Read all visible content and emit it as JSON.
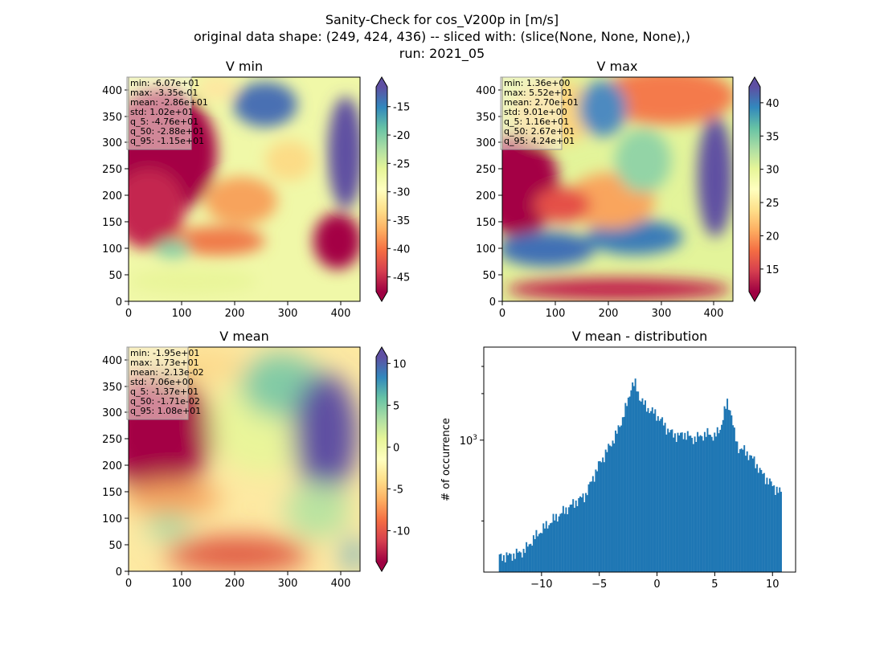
{
  "figure": {
    "title_lines": [
      "Sanity-Check for cos_V200p in [m/s]",
      "original data shape: (249, 424, 436) -- sliced with: (slice(None, None, None),)",
      "run: 2021_05"
    ]
  },
  "colormap": {
    "name": "Spectral",
    "stops": [
      "#9e0142",
      "#d53e4f",
      "#f46d43",
      "#fdae61",
      "#fee08b",
      "#ffffbf",
      "#e6f598",
      "#abdda4",
      "#66c2a5",
      "#3288bd",
      "#5e4fa2"
    ]
  },
  "panels": [
    {
      "id": "vmin",
      "title": "V min",
      "stats": [
        "min: -6.07e+01",
        "max: -3.35e-01",
        "mean: -2.86e+01",
        "std: 1.02e+01",
        "q_5: -4.76e+01",
        "q_50: -2.88e+01",
        "q_95: -1.15e+01"
      ],
      "x_ticks": [
        "0",
        "100",
        "200",
        "300",
        "400"
      ],
      "y_ticks": [
        "0",
        "50",
        "100",
        "150",
        "200",
        "250",
        "300",
        "350",
        "400"
      ],
      "colorbar_range": [
        -47.6,
        -11.5
      ],
      "colorbar_ticks": [
        "-15",
        "-20",
        "-25",
        "-30",
        "-35",
        "-40",
        "-45"
      ],
      "colorbar_tick_values": [
        -15,
        -20,
        -25,
        -30,
        -35,
        -40,
        -45
      ]
    },
    {
      "id": "vmax",
      "title": "V max",
      "stats": [
        "min: 1.36e+00",
        "max: 5.52e+01",
        "mean: 2.70e+01",
        "std: 9.01e+00",
        "q_5: 1.16e+01",
        "q_50: 2.67e+01",
        "q_95: 4.24e+01"
      ],
      "x_ticks": [
        "0",
        "100",
        "200",
        "300",
        "400"
      ],
      "y_ticks": [
        "0",
        "50",
        "100",
        "150",
        "200",
        "250",
        "300",
        "350",
        "400"
      ],
      "colorbar_range": [
        11.6,
        42.4
      ],
      "colorbar_ticks": [
        "40",
        "35",
        "30",
        "25",
        "20",
        "15"
      ],
      "colorbar_tick_values": [
        40,
        35,
        30,
        25,
        20,
        15
      ]
    },
    {
      "id": "vmean",
      "title": "V mean",
      "stats": [
        "min: -1.95e+01",
        "max: 1.73e+01",
        "mean: -2.13e-02",
        "std: 7.06e+00",
        "q_5: -1.37e+01",
        "q_50: -1.71e-02",
        "q_95: 1.08e+01"
      ],
      "x_ticks": [
        "0",
        "100",
        "200",
        "300",
        "400"
      ],
      "y_ticks": [
        "0",
        "50",
        "100",
        "150",
        "200",
        "250",
        "300",
        "350",
        "400"
      ],
      "colorbar_range": [
        -13.7,
        10.8
      ],
      "colorbar_ticks": [
        "10",
        "5",
        "0",
        "-5",
        "-10"
      ],
      "colorbar_tick_values": [
        10,
        5,
        0,
        -5,
        -10
      ]
    }
  ],
  "chart_data": {
    "type": "bar",
    "title": "V mean - distribution",
    "xlabel": "",
    "ylabel": "# of occurrence",
    "y_scale": "log",
    "ylim": [
      140,
      4000
    ],
    "xlim": [
      -15,
      12
    ],
    "x_ticks": [
      -10,
      -5,
      0,
      5,
      10
    ],
    "x_tick_labels": [
      "−10",
      "−5",
      "0",
      "5",
      "10"
    ],
    "y_major_ticks": [
      1000
    ],
    "y_major_tick_labels": [
      "10",
      "3"
    ],
    "y_minor_ticks": [
      300,
      2000,
      3000
    ],
    "bar_color": "#1f77b4",
    "bin_range": [
      -13.7,
      10.8
    ],
    "bin_count": 200,
    "profile_points": [
      [
        -13.7,
        175
      ],
      [
        -12.5,
        180
      ],
      [
        -11.5,
        192
      ],
      [
        -10.8,
        225
      ],
      [
        -10,
        262
      ],
      [
        -9,
        305
      ],
      [
        -8,
        350
      ],
      [
        -7,
        400
      ],
      [
        -6.2,
        440
      ],
      [
        -5.6,
        560
      ],
      [
        -5,
        700
      ],
      [
        -4.3,
        860
      ],
      [
        -3.5,
        1100
      ],
      [
        -3,
        1380
      ],
      [
        -2.5,
        1800
      ],
      [
        -2.2,
        2300
      ],
      [
        -1.9,
        2300
      ],
      [
        -1.5,
        1900
      ],
      [
        -1,
        1650
      ],
      [
        -0.5,
        1550
      ],
      [
        0,
        1450
      ],
      [
        0.5,
        1300
      ],
      [
        1,
        1150
      ],
      [
        1.5,
        1080
      ],
      [
        2,
        1070
      ],
      [
        2.5,
        1100
      ],
      [
        3,
        1020
      ],
      [
        3.5,
        1040
      ],
      [
        4,
        1080
      ],
      [
        4.5,
        1100
      ],
      [
        5,
        1050
      ],
      [
        5.5,
        1200
      ],
      [
        5.8,
        1500
      ],
      [
        6.1,
        1750
      ],
      [
        6.4,
        1550
      ],
      [
        6.7,
        1100
      ],
      [
        7,
        900
      ],
      [
        7.5,
        860
      ],
      [
        8,
        800
      ],
      [
        8.5,
        720
      ],
      [
        9,
        620
      ],
      [
        9.5,
        560
      ],
      [
        10,
        510
      ],
      [
        10.5,
        470
      ],
      [
        10.8,
        450
      ]
    ]
  }
}
